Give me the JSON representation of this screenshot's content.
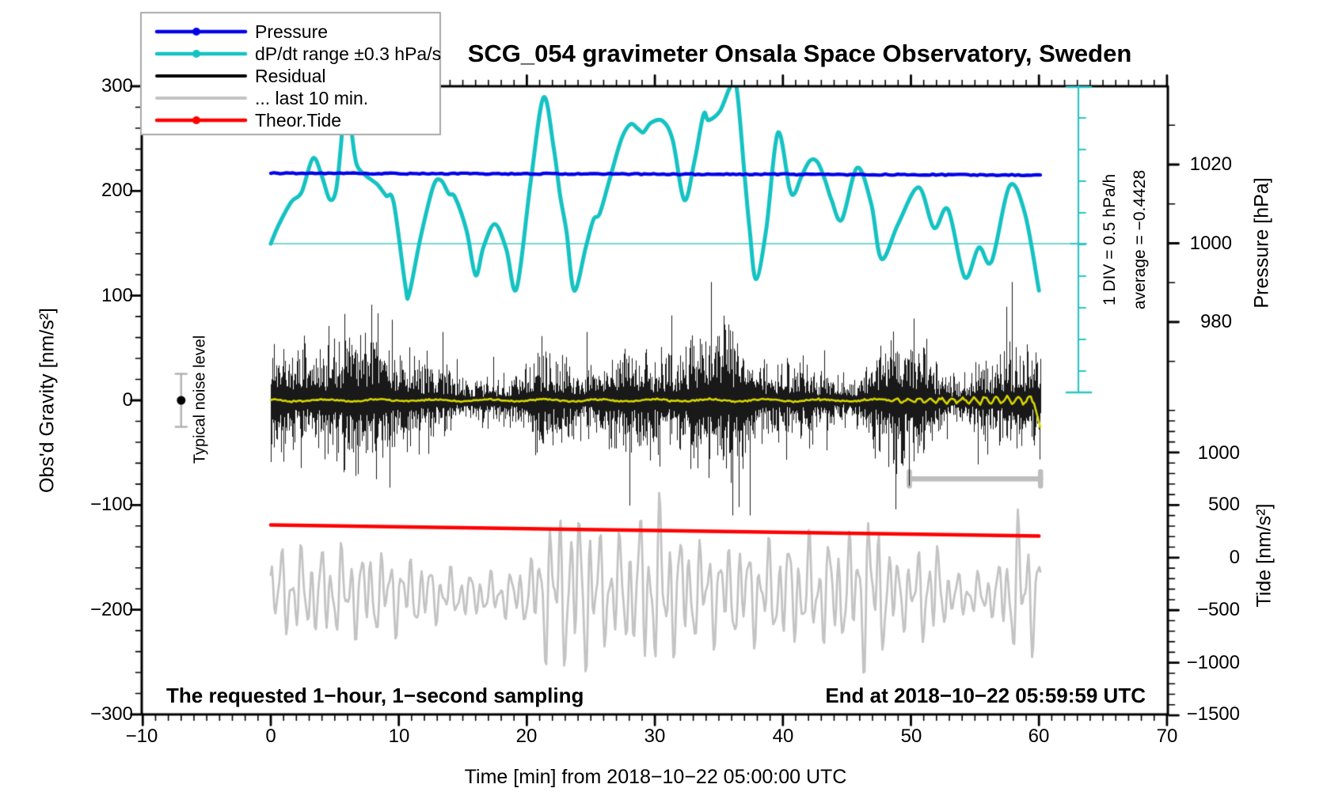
{
  "title": "SCG_054 gravimeter Onsala Space Observatory, Sweden",
  "legend": {
    "items": [
      {
        "label": "Pressure",
        "color": "#0303e8",
        "marker": true
      },
      {
        "label": "dP/dt range ±0.3 hPa/s",
        "color": "#15c2c2",
        "marker": true
      },
      {
        "label": "Residual",
        "color": "#000000",
        "marker": false
      },
      {
        "label": "... last 10 min.",
        "color": "#c3c3c3",
        "marker": false
      },
      {
        "label": "Theor.Tide",
        "color": "#ff0000",
        "marker": true
      }
    ]
  },
  "axes": {
    "x": {
      "label": "Time [min] from 2018−10−22 05:00:00 UTC",
      "range": [
        -10,
        70
      ],
      "tick_labels": [
        "−10",
        "0",
        "10",
        "20",
        "30",
        "40",
        "50",
        "60",
        "70"
      ],
      "minor_tick_interval_min": 1
    },
    "gravity": {
      "label": "Obs'd Gravity [nm/s²]",
      "range": [
        -300,
        300
      ],
      "tick_labels": [
        "300",
        "200",
        "100",
        "0",
        "−100",
        "−200",
        "−300"
      ]
    },
    "pressure": {
      "label": "Pressure [hPa]",
      "tick_labels": [
        "1020",
        "1000",
        "980"
      ]
    },
    "tide": {
      "label": "Tide [nm/s²]",
      "tick_labels": [
        "1000",
        "500",
        "0",
        "−500",
        "−1000",
        "−1500"
      ]
    }
  },
  "annotations": {
    "noise_label": "Typical noise level",
    "div_label": "1 DIV = 0.5 hPa/h",
    "average_label": "average = −0.4428",
    "sampling_note": "The requested 1−hour, 1−second sampling",
    "end_note": "End at 2018−10−22 05:59:59 UTC"
  },
  "chart_data": {
    "type": "line",
    "title": "SCG_054 gravimeter Onsala Space Observatory, Sweden",
    "x_axis": {
      "label": "Time [min] from 2018-10-22 05:00:00 UTC",
      "range": [
        -10,
        70
      ],
      "ticks": [
        -10,
        0,
        10,
        20,
        30,
        40,
        50,
        60,
        70
      ]
    },
    "y_axes": [
      {
        "name": "gravity",
        "label": "Obs'd Gravity [nm/s2]",
        "range": [
          -300,
          300
        ],
        "ticks": [
          300,
          200,
          100,
          0,
          -100,
          -200,
          -300
        ]
      },
      {
        "name": "pressure",
        "label": "Pressure [hPa]",
        "ticks": [
          1020,
          1000,
          980
        ]
      },
      {
        "name": "tide",
        "label": "Tide [nm/s2]",
        "ticks": [
          1000,
          500,
          0,
          -500,
          -1000,
          -1500
        ]
      }
    ],
    "series": [
      {
        "name": "Pressure",
        "unit": "hPa",
        "color": "#0303e8",
        "points": [
          [
            0,
            1017.8
          ],
          [
            30,
            1017.6
          ],
          [
            60,
            1017.35
          ]
        ],
        "note": "nearly constant thick blue line, slow decline of about -0.44 hPa/h"
      },
      {
        "name": "dP/dt",
        "unit": "hPa/h",
        "color": "#15c2c2",
        "zero_reference_at_pressure_hPa": 1000,
        "div_value_hPa_per_h": 0.5,
        "points": [
          [
            0,
            0.0
          ],
          [
            0.6,
            0.29
          ],
          [
            1.6,
            0.66
          ],
          [
            2.4,
            0.81
          ],
          [
            3.3,
            1.35
          ],
          [
            4.0,
            1.06
          ],
          [
            4.6,
            0.7
          ],
          [
            5.1,
            0.85
          ],
          [
            5.5,
            1.6
          ],
          [
            5.9,
            2.6
          ],
          [
            6.3,
            1.8
          ],
          [
            6.7,
            1.26
          ],
          [
            7.4,
            1.08
          ],
          [
            8.3,
            0.94
          ],
          [
            9.0,
            0.76
          ],
          [
            9.6,
            0.65
          ],
          [
            10.5,
            -0.65
          ],
          [
            10.8,
            -0.8
          ],
          [
            11.7,
            0.1
          ],
          [
            12.7,
            0.91
          ],
          [
            13.3,
            1.0
          ],
          [
            13.9,
            0.79
          ],
          [
            14.4,
            0.73
          ],
          [
            15.3,
            0.2
          ],
          [
            16.0,
            -0.5
          ],
          [
            16.6,
            -0.06
          ],
          [
            17.5,
            0.31
          ],
          [
            18.4,
            -0.09
          ],
          [
            19.2,
            -0.71
          ],
          [
            20.3,
            0.98
          ],
          [
            21.3,
            2.31
          ],
          [
            22.1,
            1.51
          ],
          [
            22.6,
            0.76
          ],
          [
            23.1,
            0.19
          ],
          [
            23.7,
            -0.74
          ],
          [
            24.6,
            -0.06
          ],
          [
            25.2,
            0.38
          ],
          [
            25.7,
            0.48
          ],
          [
            26.5,
            1.04
          ],
          [
            27.4,
            1.66
          ],
          [
            28.1,
            1.89
          ],
          [
            28.7,
            1.81
          ],
          [
            29.1,
            1.76
          ],
          [
            29.7,
            1.91
          ],
          [
            30.6,
            1.94
          ],
          [
            31.4,
            1.63
          ],
          [
            32.3,
            0.69
          ],
          [
            33.1,
            1.31
          ],
          [
            33.8,
            2.04
          ],
          [
            34.2,
            1.95
          ],
          [
            35.1,
            2.1
          ],
          [
            35.9,
            2.48
          ],
          [
            36.4,
            2.44
          ],
          [
            37.0,
            1.1
          ],
          [
            37.4,
            0.23
          ],
          [
            37.9,
            -0.56
          ],
          [
            38.7,
            0.23
          ],
          [
            39.6,
            1.75
          ],
          [
            40.5,
            0.89
          ],
          [
            40.9,
            0.79
          ],
          [
            41.4,
            1.04
          ],
          [
            42.1,
            1.31
          ],
          [
            42.7,
            1.29
          ],
          [
            43.3,
            1.0
          ],
          [
            43.8,
            0.69
          ],
          [
            44.6,
            0.38
          ],
          [
            45.8,
            1.2
          ],
          [
            46.9,
            0.63
          ],
          [
            47.7,
            -0.24
          ],
          [
            49.0,
            0.31
          ],
          [
            50.6,
            0.89
          ],
          [
            51.8,
            0.25
          ],
          [
            52.9,
            0.54
          ],
          [
            54.2,
            -0.53
          ],
          [
            55.3,
            -0.06
          ],
          [
            56.3,
            -0.28
          ],
          [
            57.7,
            0.91
          ],
          [
            58.9,
            0.48
          ],
          [
            60.0,
            -0.74
          ]
        ]
      },
      {
        "name": "Residual",
        "unit": "nm/s2",
        "color": "#000000",
        "stochastic": true,
        "mean": 0,
        "typical_range": [
          -60,
          60
        ],
        "spike_range": [
          -112,
          112
        ],
        "burst_center_min": 50
      },
      {
        "name": "Residual smoothed",
        "unit": "nm/s2",
        "color": "#d6d600",
        "mean": 0,
        "wiggle_after_min": 48,
        "end_drop_nm_s2": -32
      },
      {
        "name": "... last 10 min.",
        "unit": "nm/s2 on tide axis",
        "color": "#c3c3c3",
        "mean_tide": -375,
        "typical_amplitude_tide": 450,
        "window_bar": {
          "t_start": 50,
          "t_end": 60,
          "gravity_level": -75
        }
      },
      {
        "name": "Theor.Tide",
        "unit": "nm/s2 on tide axis",
        "color": "#ff0000",
        "points": [
          [
            0,
            310
          ],
          [
            15,
            285
          ],
          [
            30,
            258
          ],
          [
            45,
            232
          ],
          [
            60,
            205
          ]
        ]
      }
    ],
    "noise_marker": {
      "t": -7,
      "value": 0,
      "error": 20,
      "label": "Typical noise level"
    },
    "scale_bar": {
      "label": "1 DIV = 0.5 hPa/h",
      "average_label": "average = −0.4428",
      "average_value": -0.4428
    }
  }
}
